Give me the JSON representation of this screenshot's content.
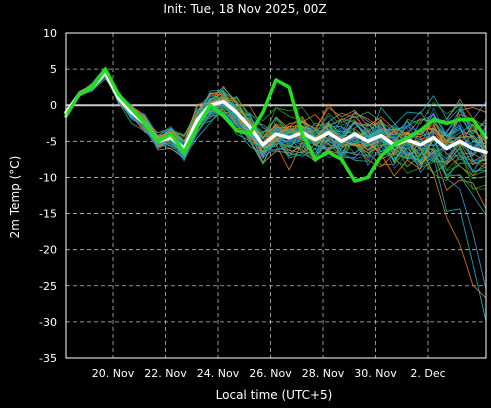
{
  "chart_data": {
    "type": "line",
    "title": "Init: Tue, 18 Nov 2025, 00Z",
    "xlabel": "Local time (UTC+5)",
    "ylabel": "2m Temp (°C)",
    "ylim": [
      -35,
      10
    ],
    "yticks": [
      10,
      5,
      0,
      -5,
      -10,
      -15,
      -20,
      -25,
      -30,
      -35
    ],
    "xlim": [
      "2025-11-18T05:00",
      "2025-12-04T05:00"
    ],
    "xtick_labels": [
      {
        "date": "2025-11-20",
        "label": "20. Nov"
      },
      {
        "date": "2025-11-22",
        "label": "22. Nov"
      },
      {
        "date": "2025-11-24",
        "label": "24. Nov"
      },
      {
        "date": "2025-11-26",
        "label": "26. Nov"
      },
      {
        "date": "2025-11-28",
        "label": "28. Nov"
      },
      {
        "date": "2025-11-30",
        "label": "30. Nov"
      },
      {
        "date": "2025-12-02",
        "label": "2. Dec"
      }
    ],
    "grid": true,
    "zero_line": true,
    "series": [
      {
        "role": "mean",
        "color": "#ffffff",
        "points": [
          [
            "2025-11-18T05:00",
            -1
          ],
          [
            "2025-11-18T17:00",
            1.5
          ],
          [
            "2025-11-19T05:00",
            2.5
          ],
          [
            "2025-11-19T17:00",
            4.5
          ],
          [
            "2025-11-20T05:00",
            1
          ],
          [
            "2025-11-20T17:00",
            -1
          ],
          [
            "2025-11-21T05:00",
            -2.5
          ],
          [
            "2025-11-21T17:00",
            -5
          ],
          [
            "2025-11-22T05:00",
            -4.5
          ],
          [
            "2025-11-22T17:00",
            -6
          ],
          [
            "2025-11-23T05:00",
            -2
          ],
          [
            "2025-11-23T17:00",
            0
          ],
          [
            "2025-11-24T05:00",
            0.5
          ],
          [
            "2025-11-24T17:00",
            -1
          ],
          [
            "2025-11-25T05:00",
            -3
          ],
          [
            "2025-11-25T17:00",
            -5.5
          ],
          [
            "2025-11-26T05:00",
            -4
          ],
          [
            "2025-11-26T17:00",
            -4.5
          ],
          [
            "2025-11-27T05:00",
            -3.8
          ],
          [
            "2025-11-27T17:00",
            -4.8
          ],
          [
            "2025-11-28T05:00",
            -3.8
          ],
          [
            "2025-11-28T17:00",
            -5
          ],
          [
            "2025-11-29T05:00",
            -4
          ],
          [
            "2025-11-29T17:00",
            -5
          ],
          [
            "2025-11-30T05:00",
            -4.2
          ],
          [
            "2025-11-30T17:00",
            -5.5
          ],
          [
            "2025-12-01T05:00",
            -4.8
          ],
          [
            "2025-12-01T17:00",
            -5.5
          ],
          [
            "2025-12-02T05:00",
            -4.5
          ],
          [
            "2025-12-02T17:00",
            -6
          ],
          [
            "2025-12-03T05:00",
            -5
          ],
          [
            "2025-12-03T17:00",
            -6
          ],
          [
            "2025-12-04T05:00",
            -6.5
          ]
        ]
      },
      {
        "role": "control",
        "color": "#22dd22",
        "points": [
          [
            "2025-11-18T05:00",
            -1.5
          ],
          [
            "2025-11-18T17:00",
            1.5
          ],
          [
            "2025-11-19T05:00",
            2.5
          ],
          [
            "2025-11-19T17:00",
            5
          ],
          [
            "2025-11-20T05:00",
            1.5
          ],
          [
            "2025-11-20T17:00",
            -0.5
          ],
          [
            "2025-11-21T05:00",
            -2.5
          ],
          [
            "2025-11-21T17:00",
            -5
          ],
          [
            "2025-11-22T05:00",
            -4
          ],
          [
            "2025-11-22T17:00",
            -6.5
          ],
          [
            "2025-11-23T05:00",
            -3
          ],
          [
            "2025-11-23T17:00",
            0
          ],
          [
            "2025-11-24T05:00",
            -1.5
          ],
          [
            "2025-11-24T17:00",
            -3.5
          ],
          [
            "2025-11-25T05:00",
            -4
          ],
          [
            "2025-11-25T17:00",
            -1
          ],
          [
            "2025-11-26T05:00",
            3.5
          ],
          [
            "2025-11-26T17:00",
            2.5
          ],
          [
            "2025-11-27T05:00",
            -4
          ],
          [
            "2025-11-27T17:00",
            -7.5
          ],
          [
            "2025-11-28T05:00",
            -6.5
          ],
          [
            "2025-11-28T17:00",
            -7.5
          ],
          [
            "2025-11-29T05:00",
            -10.5
          ],
          [
            "2025-11-29T17:00",
            -10
          ],
          [
            "2025-11-30T05:00",
            -7
          ],
          [
            "2025-11-30T17:00",
            -5.5
          ],
          [
            "2025-12-01T05:00",
            -4.5
          ],
          [
            "2025-12-01T17:00",
            -3.5
          ],
          [
            "2025-12-02T05:00",
            -2
          ],
          [
            "2025-12-02T17:00",
            -2.5
          ],
          [
            "2025-12-03T05:00",
            -2
          ],
          [
            "2025-12-03T17:00",
            -2
          ],
          [
            "2025-12-04T05:00",
            -4.5
          ]
        ]
      }
    ],
    "ensemble": {
      "count": 50,
      "colors": [
        "#1f77b4",
        "#ff7f0e",
        "#2ca02c",
        "#17becf",
        "#4a9fd8",
        "#e08a2a",
        "#3cb371",
        "#20b2aa"
      ],
      "spread_note": "ensemble members between about -31 and 6 °C"
    }
  }
}
